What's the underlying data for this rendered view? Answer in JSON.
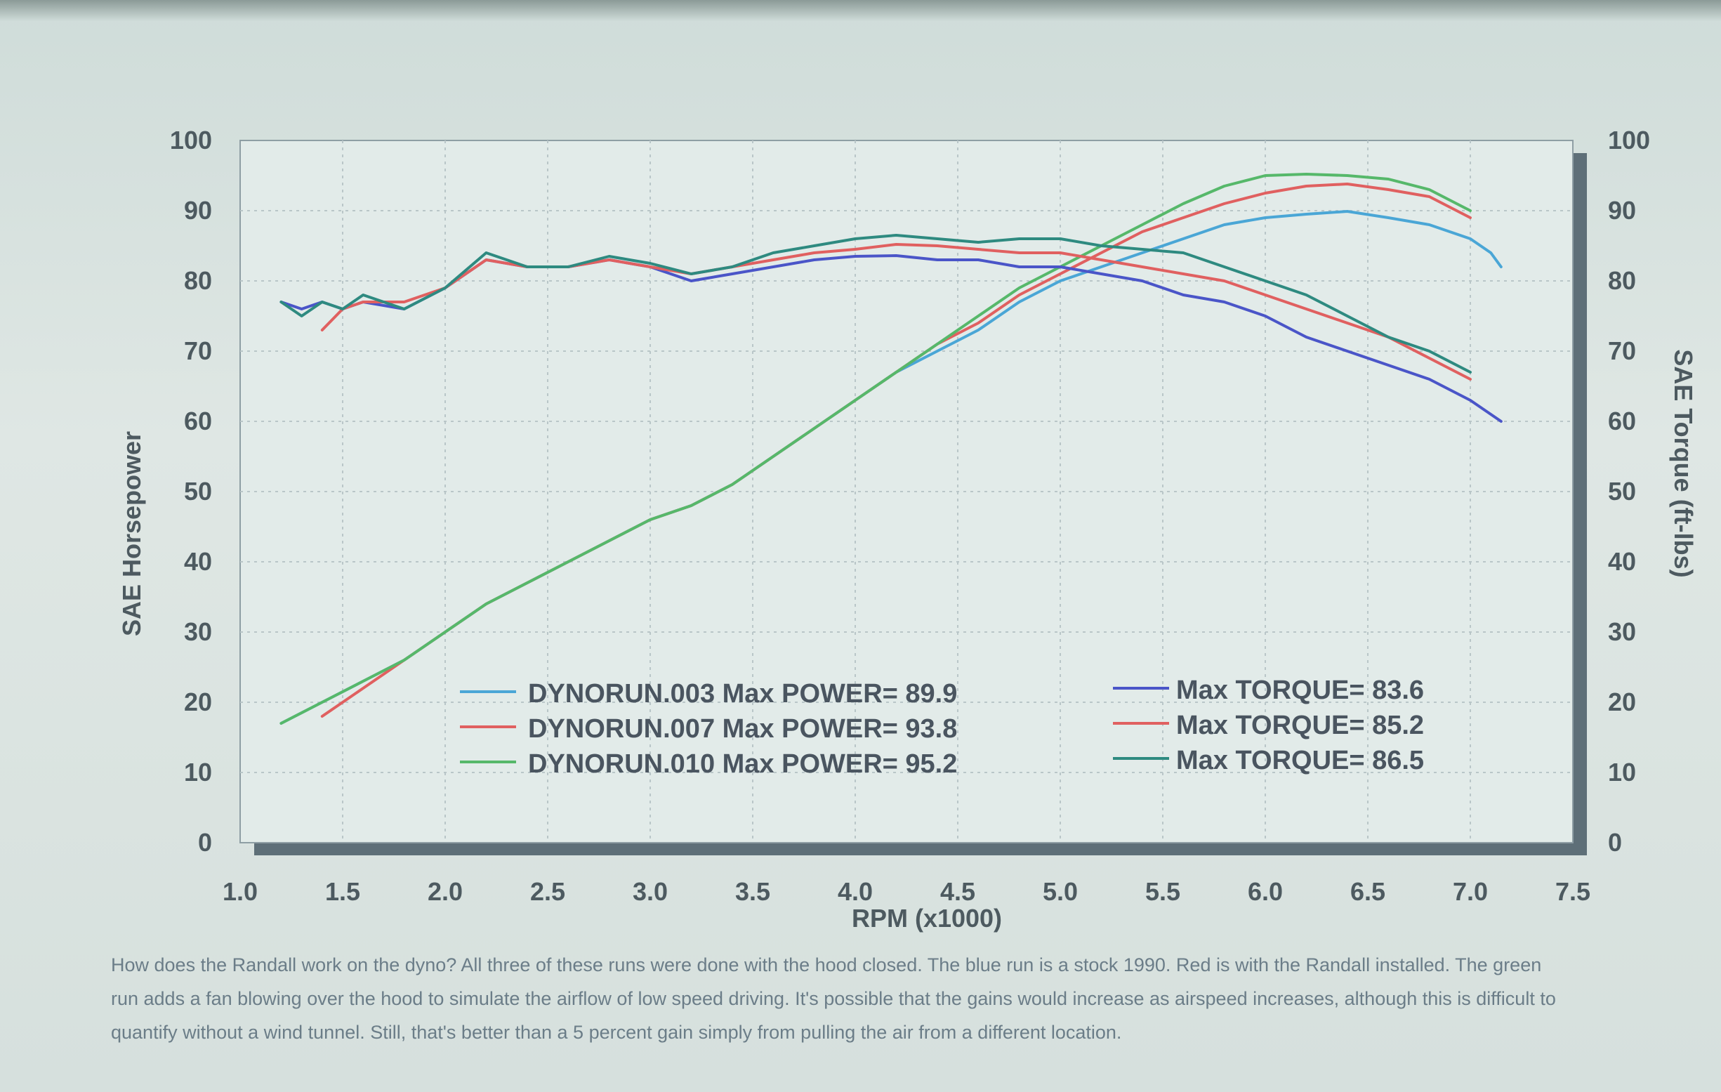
{
  "chart_data": {
    "type": "line",
    "xlabel": "RPM (x1000)",
    "ylabel_left": "SAE Horsepower",
    "ylabel_right": "SAE Torque (ft-lbs)",
    "xlim": [
      1.0,
      7.5
    ],
    "ylim_left": [
      0,
      100
    ],
    "ylim_right": [
      0,
      100
    ],
    "x_ticks": [
      "1.0",
      "1.5",
      "2.0",
      "2.5",
      "3.0",
      "3.5",
      "4.0",
      "4.5",
      "5.0",
      "5.5",
      "6.0",
      "6.5",
      "7.0",
      "7.5"
    ],
    "y_ticks_left": [
      "0",
      "10",
      "20",
      "30",
      "40",
      "50",
      "60",
      "70",
      "80",
      "90",
      "100"
    ],
    "y_ticks_right": [
      "0",
      "10",
      "20",
      "30",
      "40",
      "50",
      "60",
      "70",
      "80",
      "90",
      "100"
    ],
    "grid": true,
    "series": [
      {
        "name": "DYNORUN.003",
        "label": "DYNORUN.003  Max POWER= 89.9",
        "kind": "power",
        "color": "#4aa6d6",
        "x": [
          1.2,
          1.4,
          1.6,
          1.8,
          2.0,
          2.2,
          2.4,
          2.6,
          2.8,
          3.0,
          3.2,
          3.4,
          3.6,
          3.8,
          4.0,
          4.2,
          4.4,
          4.6,
          4.8,
          5.0,
          5.2,
          5.4,
          5.6,
          5.8,
          6.0,
          6.2,
          6.4,
          6.6,
          6.8,
          7.0,
          7.1,
          7.15
        ],
        "y": [
          17,
          20,
          23,
          26,
          30,
          34,
          37,
          40,
          43,
          46,
          48,
          51,
          55,
          59,
          63,
          67,
          70,
          73,
          77,
          80,
          82,
          84,
          86,
          88,
          89,
          89.5,
          89.9,
          89,
          88,
          86,
          84,
          82
        ]
      },
      {
        "name": "DYNORUN.007",
        "label": "DYNORUN.007  Max POWER= 93.8",
        "kind": "power",
        "color": "#e06060",
        "x": [
          1.4,
          1.6,
          1.8,
          2.0,
          2.2,
          2.4,
          2.6,
          2.8,
          3.0,
          3.2,
          3.4,
          3.6,
          3.8,
          4.0,
          4.2,
          4.4,
          4.6,
          4.8,
          5.0,
          5.2,
          5.4,
          5.6,
          5.8,
          6.0,
          6.2,
          6.4,
          6.6,
          6.8,
          7.0
        ],
        "y": [
          18,
          22,
          26,
          30,
          34,
          37,
          40,
          43,
          46,
          48,
          51,
          55,
          59,
          63,
          67,
          71,
          74,
          78,
          81,
          84,
          87,
          89,
          91,
          92.5,
          93.5,
          93.8,
          93,
          92,
          89
        ]
      },
      {
        "name": "DYNORUN.010",
        "label": "DYNORUN.010  Max POWER= 95.2",
        "kind": "power",
        "color": "#56b86a",
        "x": [
          1.2,
          1.4,
          1.6,
          1.8,
          2.0,
          2.2,
          2.4,
          2.6,
          2.8,
          3.0,
          3.2,
          3.4,
          3.6,
          3.8,
          4.0,
          4.2,
          4.4,
          4.6,
          4.8,
          5.0,
          5.2,
          5.4,
          5.6,
          5.8,
          6.0,
          6.2,
          6.4,
          6.6,
          6.8,
          7.0
        ],
        "y": [
          17,
          20,
          23,
          26,
          30,
          34,
          37,
          40,
          43,
          46,
          48,
          51,
          55,
          59,
          63,
          67,
          71,
          75,
          79,
          82,
          85,
          88,
          91,
          93.5,
          95,
          95.2,
          95,
          94.5,
          93,
          90
        ]
      },
      {
        "name": "DYNORUN.003",
        "label": "Max TORQUE= 83.6",
        "kind": "torque",
        "color": "#4a55c8",
        "x": [
          1.2,
          1.3,
          1.4,
          1.5,
          1.6,
          1.8,
          2.0,
          2.2,
          2.4,
          2.6,
          2.8,
          3.0,
          3.2,
          3.4,
          3.6,
          3.8,
          4.0,
          4.2,
          4.4,
          4.6,
          4.8,
          5.0,
          5.2,
          5.4,
          5.6,
          5.8,
          6.0,
          6.2,
          6.4,
          6.6,
          6.8,
          7.0,
          7.15
        ],
        "y": [
          77,
          76,
          77,
          76,
          77,
          76,
          79,
          83,
          82,
          82,
          83,
          82,
          80,
          81,
          82,
          83,
          83.5,
          83.6,
          83,
          83,
          82,
          82,
          81,
          80,
          78,
          77,
          75,
          72,
          70,
          68,
          66,
          63,
          60
        ]
      },
      {
        "name": "DYNORUN.007",
        "label": "Max TORQUE= 85.2",
        "kind": "torque",
        "color": "#e06060",
        "x": [
          1.4,
          1.5,
          1.6,
          1.8,
          2.0,
          2.2,
          2.4,
          2.6,
          2.8,
          3.0,
          3.2,
          3.4,
          3.6,
          3.8,
          4.0,
          4.2,
          4.4,
          4.6,
          4.8,
          5.0,
          5.2,
          5.4,
          5.6,
          5.8,
          6.0,
          6.2,
          6.4,
          6.6,
          6.8,
          7.0
        ],
        "y": [
          73,
          76,
          77,
          77,
          79,
          83,
          82,
          82,
          83,
          82,
          81,
          82,
          83,
          84,
          84.5,
          85.2,
          85,
          84.5,
          84,
          84,
          83,
          82,
          81,
          80,
          78,
          76,
          74,
          72,
          69,
          66
        ]
      },
      {
        "name": "DYNORUN.010",
        "label": "Max TORQUE= 86.5",
        "kind": "torque",
        "color": "#2e8a80",
        "x": [
          1.2,
          1.3,
          1.4,
          1.5,
          1.6,
          1.8,
          2.0,
          2.2,
          2.4,
          2.6,
          2.8,
          3.0,
          3.2,
          3.4,
          3.6,
          3.8,
          4.0,
          4.2,
          4.4,
          4.6,
          4.8,
          5.0,
          5.2,
          5.4,
          5.6,
          5.8,
          6.0,
          6.2,
          6.4,
          6.6,
          6.8,
          7.0
        ],
        "y": [
          77,
          75,
          77,
          76,
          78,
          76,
          79,
          84,
          82,
          82,
          83.5,
          82.5,
          81,
          82,
          84,
          85,
          86,
          86.5,
          86,
          85.5,
          86,
          86,
          85,
          84.5,
          84,
          82,
          80,
          78,
          75,
          72,
          70,
          67
        ]
      }
    ],
    "legend_placement": "bottom-center"
  },
  "caption": [
    "How does the Randall work on the dyno? All three of these runs were done with the hood closed. The blue run is a stock 1990. Red is with the Randall installed. The green",
    "run adds a fan blowing over the hood to simulate the airflow of low speed driving. It's possible that the gains would increase as airspeed increases, although this is difficult to",
    "quantify without a wind tunnel. Still, that's better than a 5 percent gain simply from pulling the air from a different location."
  ]
}
